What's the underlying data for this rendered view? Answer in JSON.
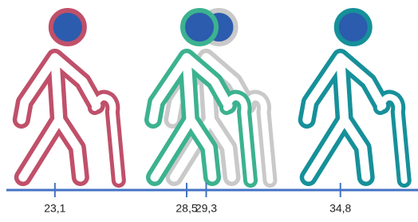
{
  "chart_data": {
    "type": "pictogram",
    "values": [
      23.1,
      28.5,
      29.3,
      34.8
    ],
    "value_labels": [
      "23,1",
      "28,5",
      "29,3",
      "34,8"
    ],
    "colors": [
      "#c0506a",
      "#3cb28f",
      "#c9c9c9",
      "#16909a"
    ],
    "head_color": "#2b5cae",
    "axis_color": "#4472c4",
    "xlim": [
      20.85,
      37.98
    ]
  }
}
